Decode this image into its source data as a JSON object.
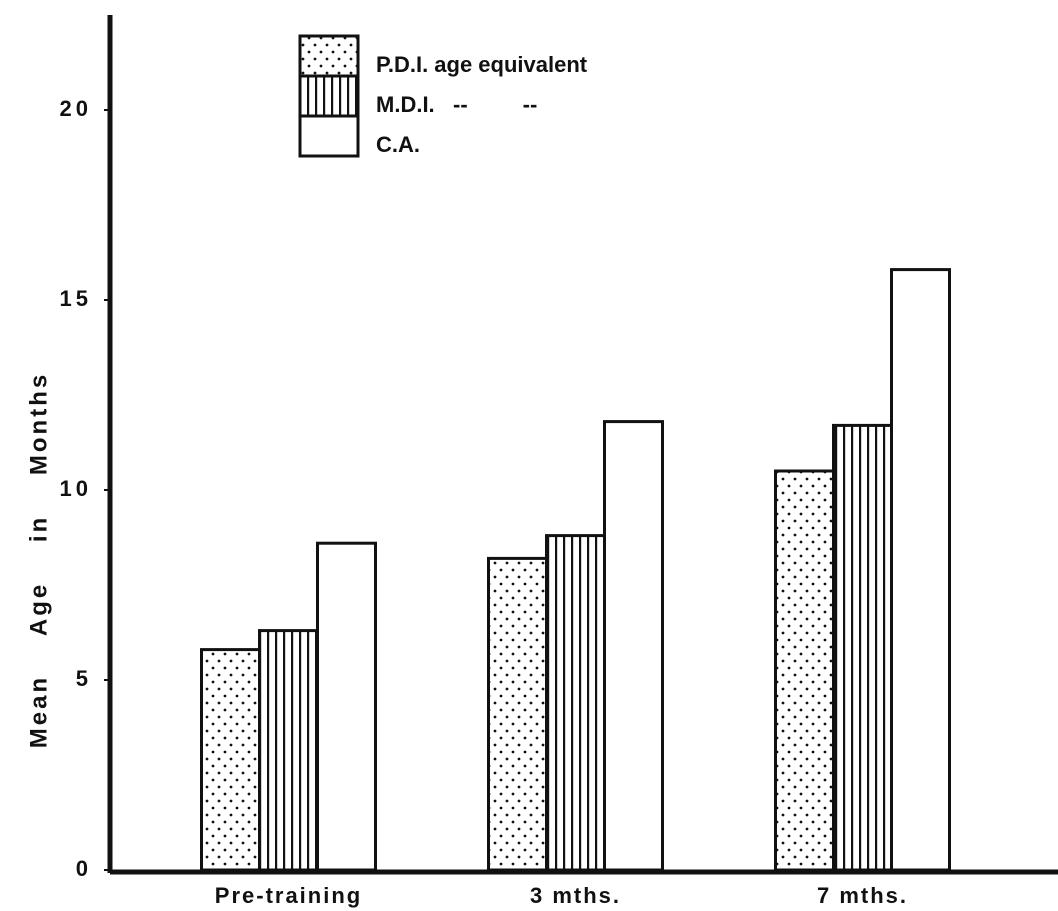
{
  "chart_data": {
    "type": "bar",
    "y_label": "Mean Age in Months",
    "categories": [
      "Pre-training",
      "3 mths.",
      "7 mths."
    ],
    "series": [
      {
        "name": "P.D.I. age equivalent",
        "color": "#111111",
        "pattern": "dots",
        "values": [
          5.8,
          8.2,
          10.5
        ]
      },
      {
        "name": "M.D.I.   --         --",
        "color": "#111111",
        "pattern": "vertical-lines",
        "values": [
          6.3,
          8.8,
          11.7
        ]
      },
      {
        "name": "C.A.",
        "color": "#111111",
        "pattern": "none",
        "values": [
          8.6,
          11.8,
          15.8
        ]
      }
    ],
    "ylim": [
      0,
      22.5
    ],
    "yticks": [
      0,
      5,
      10,
      15,
      20
    ],
    "grid": false
  }
}
